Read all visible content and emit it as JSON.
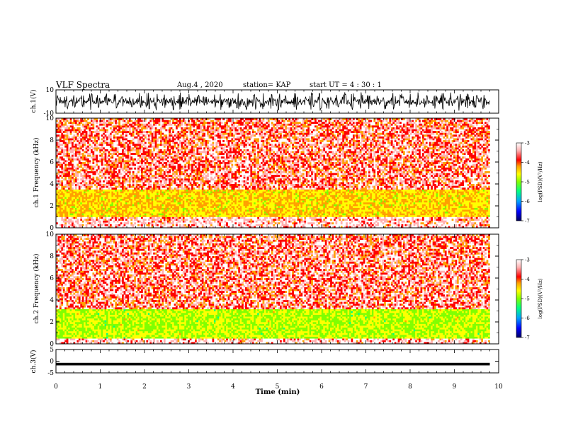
{
  "header": {
    "title": "VLF Spectra",
    "date": "Aug.4 , 2020",
    "station": "station= KAP",
    "start_ut": "start UT = 4 : 30 : 1"
  },
  "colors": {
    "waveform": "#000000",
    "background": "#ffffff",
    "colormap": [
      "#000066",
      "#0000ff",
      "#00a0ff",
      "#00ff80",
      "#80ff00",
      "#ffff00",
      "#ffa000",
      "#ff0000",
      "#ffb0b0",
      "#ffffff"
    ]
  },
  "chart_data": [
    {
      "type": "line",
      "name": "ch1-waveform",
      "ylabel": "ch.1(V)",
      "ylim": [
        -10,
        10
      ],
      "y_ticks": [
        "10",
        "-10"
      ],
      "xlim": [
        0,
        10
      ],
      "x_data_range": [
        0,
        9.8
      ],
      "description_values": "dense oscillating waveform between about -8 and 8 V"
    },
    {
      "type": "heatmap",
      "name": "ch1-spectrogram",
      "ylabel": "ch.1 Frequency (kHz)",
      "ylim": [
        0,
        10
      ],
      "y_ticks": [
        "0",
        "2",
        "4",
        "6",
        "8",
        "10"
      ],
      "xlim": [
        0,
        10
      ],
      "x_data_range": [
        0,
        9.8
      ],
      "bands": [
        {
          "fmin": 1.0,
          "fmax": 3.5,
          "level": -4.6
        },
        {
          "fmin": 3.5,
          "fmax": 10.0,
          "level": -3.8
        }
      ],
      "colorbar": {
        "label": "log(PSD)(V²/Hz)",
        "range": [
          -7,
          -3
        ],
        "ticks": [
          "-3",
          "-4",
          "-5",
          "-6",
          "-7"
        ]
      }
    },
    {
      "type": "heatmap",
      "name": "ch2-spectrogram",
      "ylabel": "ch.2 Frequency (kHz)",
      "ylim": [
        0,
        10
      ],
      "y_ticks": [
        "0",
        "2",
        "4",
        "6",
        "8",
        "10"
      ],
      "xlim": [
        0,
        10
      ],
      "x_data_range": [
        0,
        9.8
      ],
      "bands": [
        {
          "fmin": 0.5,
          "fmax": 3.2,
          "level": -5.0
        },
        {
          "fmin": 3.2,
          "fmax": 10.0,
          "level": -3.8
        }
      ],
      "colorbar": {
        "label": "log(PSD)(V²/Hz)",
        "range": [
          -7,
          -3
        ],
        "ticks": [
          "-3",
          "-4",
          "-5",
          "-6",
          "-7"
        ]
      }
    },
    {
      "type": "line",
      "name": "ch3-waveform",
      "ylabel": "ch.3(V)",
      "ylim": [
        -5,
        5
      ],
      "y_ticks": [
        "5",
        "0",
        "-5"
      ],
      "xlim": [
        0,
        10
      ],
      "x_data_range": [
        0,
        9.8
      ],
      "description_values": "flat thick band near -1 V"
    }
  ],
  "x_axis": {
    "label": "Time (min)",
    "ticks": [
      "0",
      "1",
      "2",
      "3",
      "4",
      "5",
      "6",
      "7",
      "8",
      "9",
      "10"
    ]
  }
}
